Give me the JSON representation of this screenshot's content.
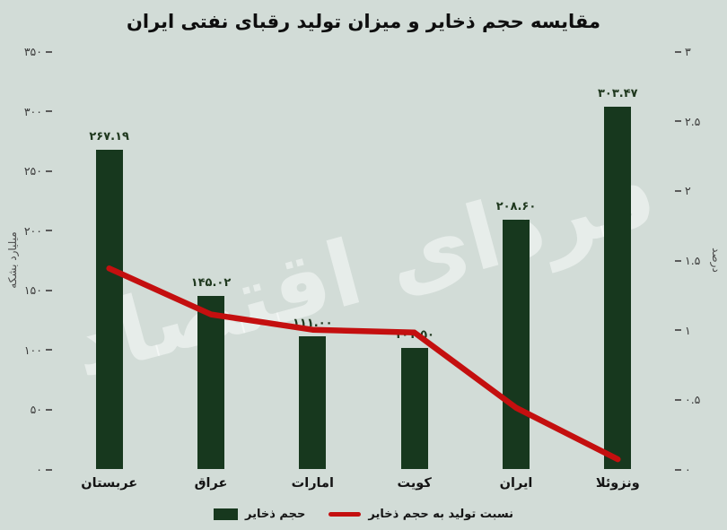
{
  "watermark": "فردای اقتصاد",
  "colors": {
    "background": "#d2dcd7",
    "bar": "#17381e",
    "line": "#c40f0f"
  },
  "chart_data": {
    "type": "bar",
    "title": "مقایسه حجم ذخایر و میزان تولید رقبای نفتی ایران",
    "categories": [
      "عربستان",
      "عراق",
      "امارات",
      "کویت",
      "ایران",
      "ونزوئلا"
    ],
    "series": [
      {
        "name": "حجم ذخایر",
        "type": "bar",
        "axis": "left",
        "values": [
          267.19,
          145.02,
          111.0,
          101.5,
          208.6,
          303.47
        ],
        "value_labels": [
          "۲۶۷.۱۹",
          "۱۴۵.۰۲",
          "۱۱۱.۰۰",
          "۱۰۱.۵۰",
          "۲۰۸.۶۰",
          "۳۰۳.۴۷"
        ]
      },
      {
        "name": "نسبت تولید به حجم ذخایر",
        "type": "line",
        "axis": "right",
        "values": [
          1.44,
          1.11,
          1.0,
          0.98,
          0.44,
          0.07
        ]
      }
    ],
    "left_axis": {
      "label": "میلیارد بشکه",
      "min": 0,
      "max": 350,
      "ticks": [
        {
          "value": 0,
          "label": "۰"
        },
        {
          "value": 50,
          "label": "۵۰"
        },
        {
          "value": 100,
          "label": "۱۰۰"
        },
        {
          "value": 150,
          "label": "۱۵۰"
        },
        {
          "value": 200,
          "label": "۲۰۰"
        },
        {
          "value": 250,
          "label": "۲۵۰"
        },
        {
          "value": 300,
          "label": "۳۰۰"
        },
        {
          "value": 350,
          "label": "۳۵۰"
        }
      ]
    },
    "right_axis": {
      "label": "درصد",
      "min": 0,
      "max": 3,
      "ticks": [
        {
          "value": 0,
          "label": "۰"
        },
        {
          "value": 0.5,
          "label": "۰.۵"
        },
        {
          "value": 1,
          "label": "۱"
        },
        {
          "value": 1.5,
          "label": "۱.۵"
        },
        {
          "value": 2,
          "label": "۲"
        },
        {
          "value": 2.5,
          "label": "۲.۵"
        },
        {
          "value": 3,
          "label": "۳"
        }
      ]
    },
    "legend": [
      {
        "label": "حجم ذخایر",
        "swatch": "bar"
      },
      {
        "label": "نسبت تولید به حجم ذخایر",
        "swatch": "line"
      }
    ],
    "grid": false,
    "legend_position": "bottom"
  }
}
